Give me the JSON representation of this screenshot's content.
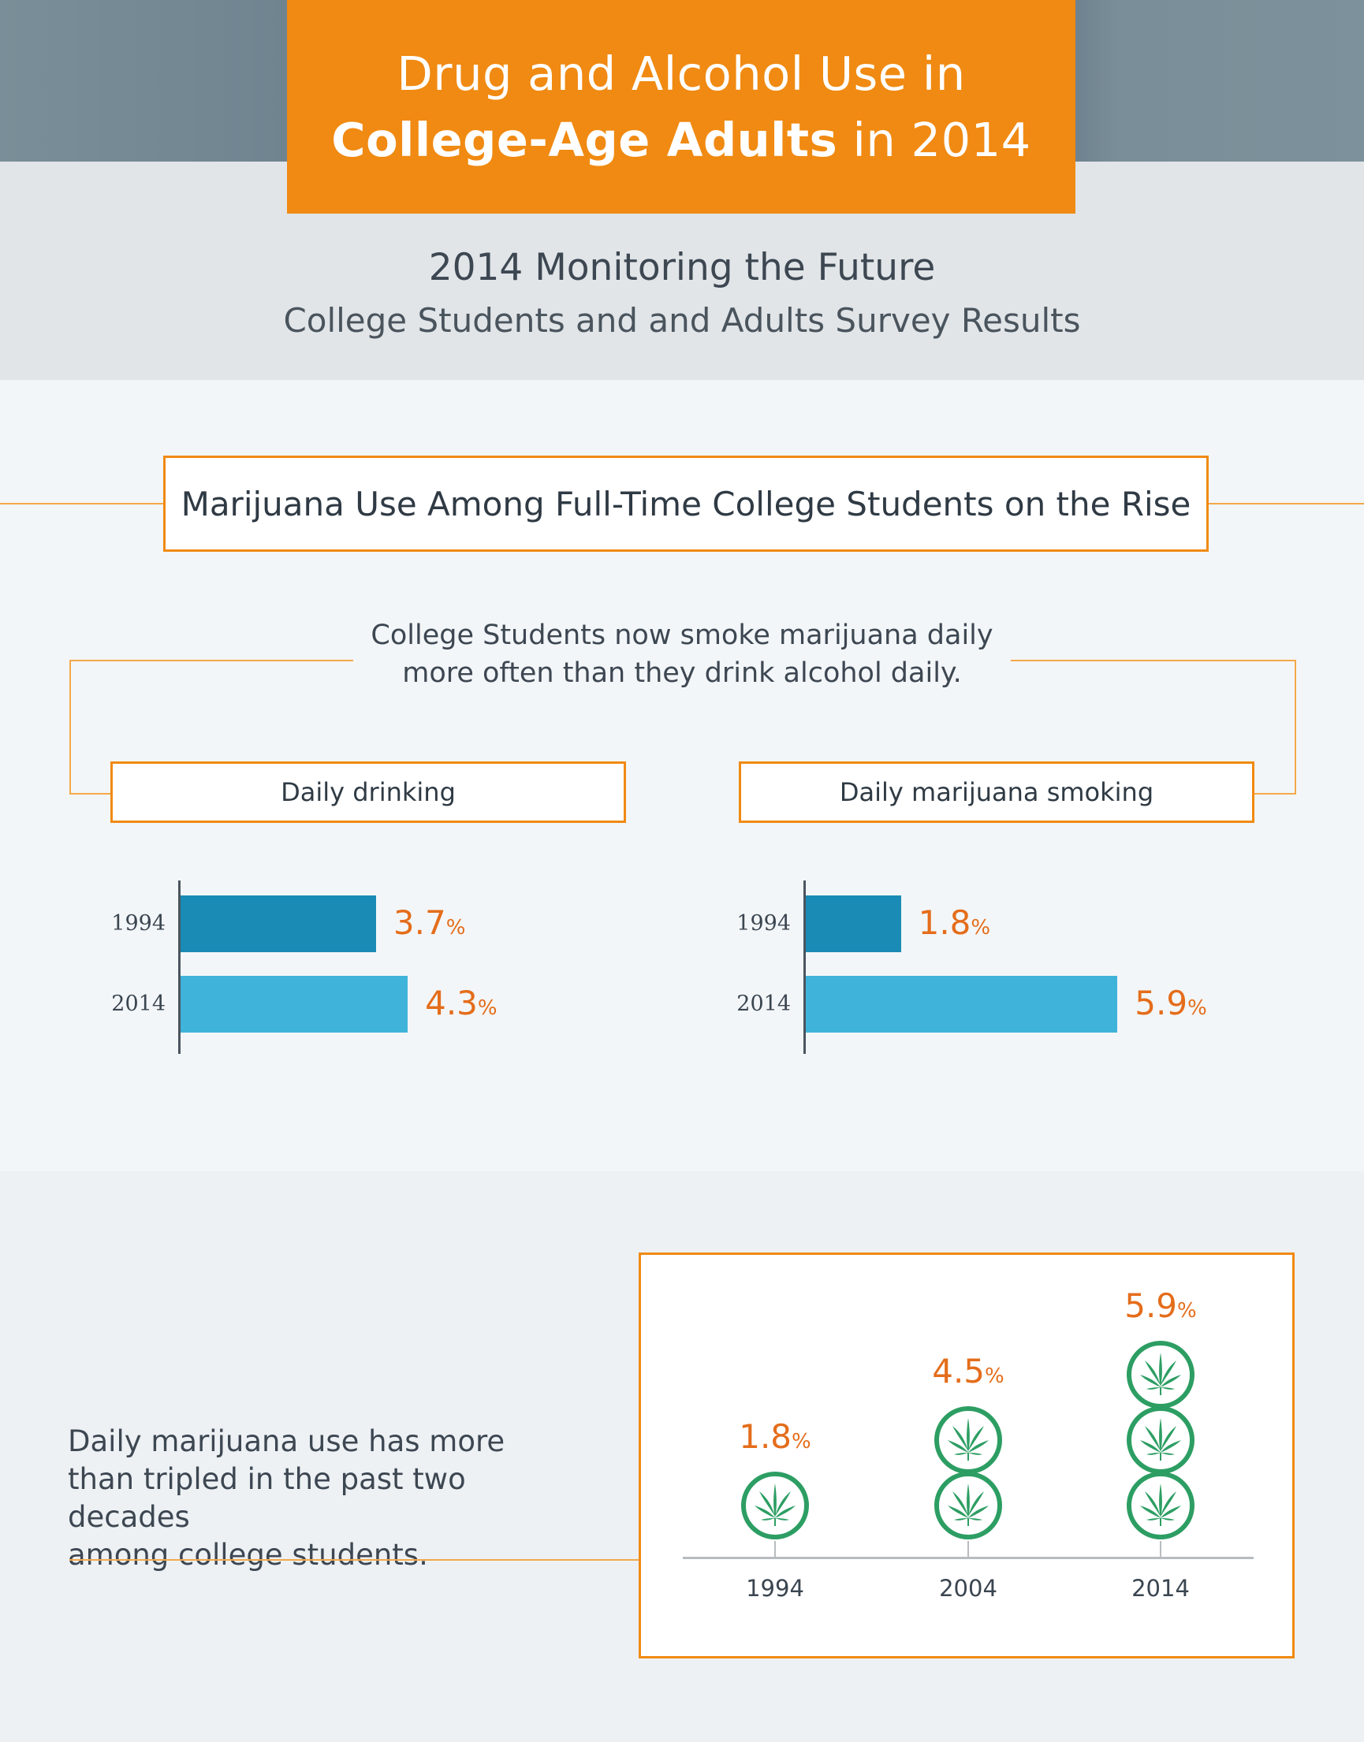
{
  "header": {
    "title_line1": "Drug and Alcohol Use in",
    "title_line2_bold": "College-Age Adults",
    "title_line2_rest": " in 2014",
    "subtitle": "2014 Monitoring the Future",
    "subtitle_sub": "College Students and and Adults Survey Results"
  },
  "section": {
    "header": "Marijuana Use Among Full-Time College Students on the Rise",
    "intro_line1": "College Students now smoke marijuana daily",
    "intro_line2": "more often than they drink alcohol daily.",
    "pct_sign": "%"
  },
  "bottom": {
    "text_line1": "Daily marijuana use has more",
    "text_line2": "than tripled in the past two decades",
    "text_line3": "among college students."
  },
  "colors": {
    "accent_orange": "#f08a12",
    "value_orange": "#e46d1b",
    "bar_1994": "#1a8bb4",
    "bar_2014": "#3fb3da",
    "leaf_green": "#2d9e63"
  },
  "chart_data": [
    {
      "type": "bar",
      "orientation": "horizontal",
      "title": "Daily drinking",
      "categories": [
        "1994",
        "2014"
      ],
      "values": [
        3.7,
        4.3
      ],
      "value_labels": [
        "3.7",
        "4.3"
      ],
      "unit": "%"
    },
    {
      "type": "bar",
      "orientation": "horizontal",
      "title": "Daily marijuana smoking",
      "categories": [
        "1994",
        "2014"
      ],
      "values": [
        1.8,
        5.9
      ],
      "value_labels": [
        "1.8",
        "5.9"
      ],
      "unit": "%"
    },
    {
      "type": "bar",
      "orientation": "vertical",
      "style": "pictograph",
      "icon": "cannabis-leaf-icon",
      "categories": [
        "1994",
        "2004",
        "2014"
      ],
      "values": [
        1.8,
        4.5,
        5.9
      ],
      "value_labels": [
        "1.8",
        "4.5",
        "5.9"
      ],
      "icon_counts": [
        1,
        2,
        3
      ],
      "unit": "%"
    }
  ]
}
